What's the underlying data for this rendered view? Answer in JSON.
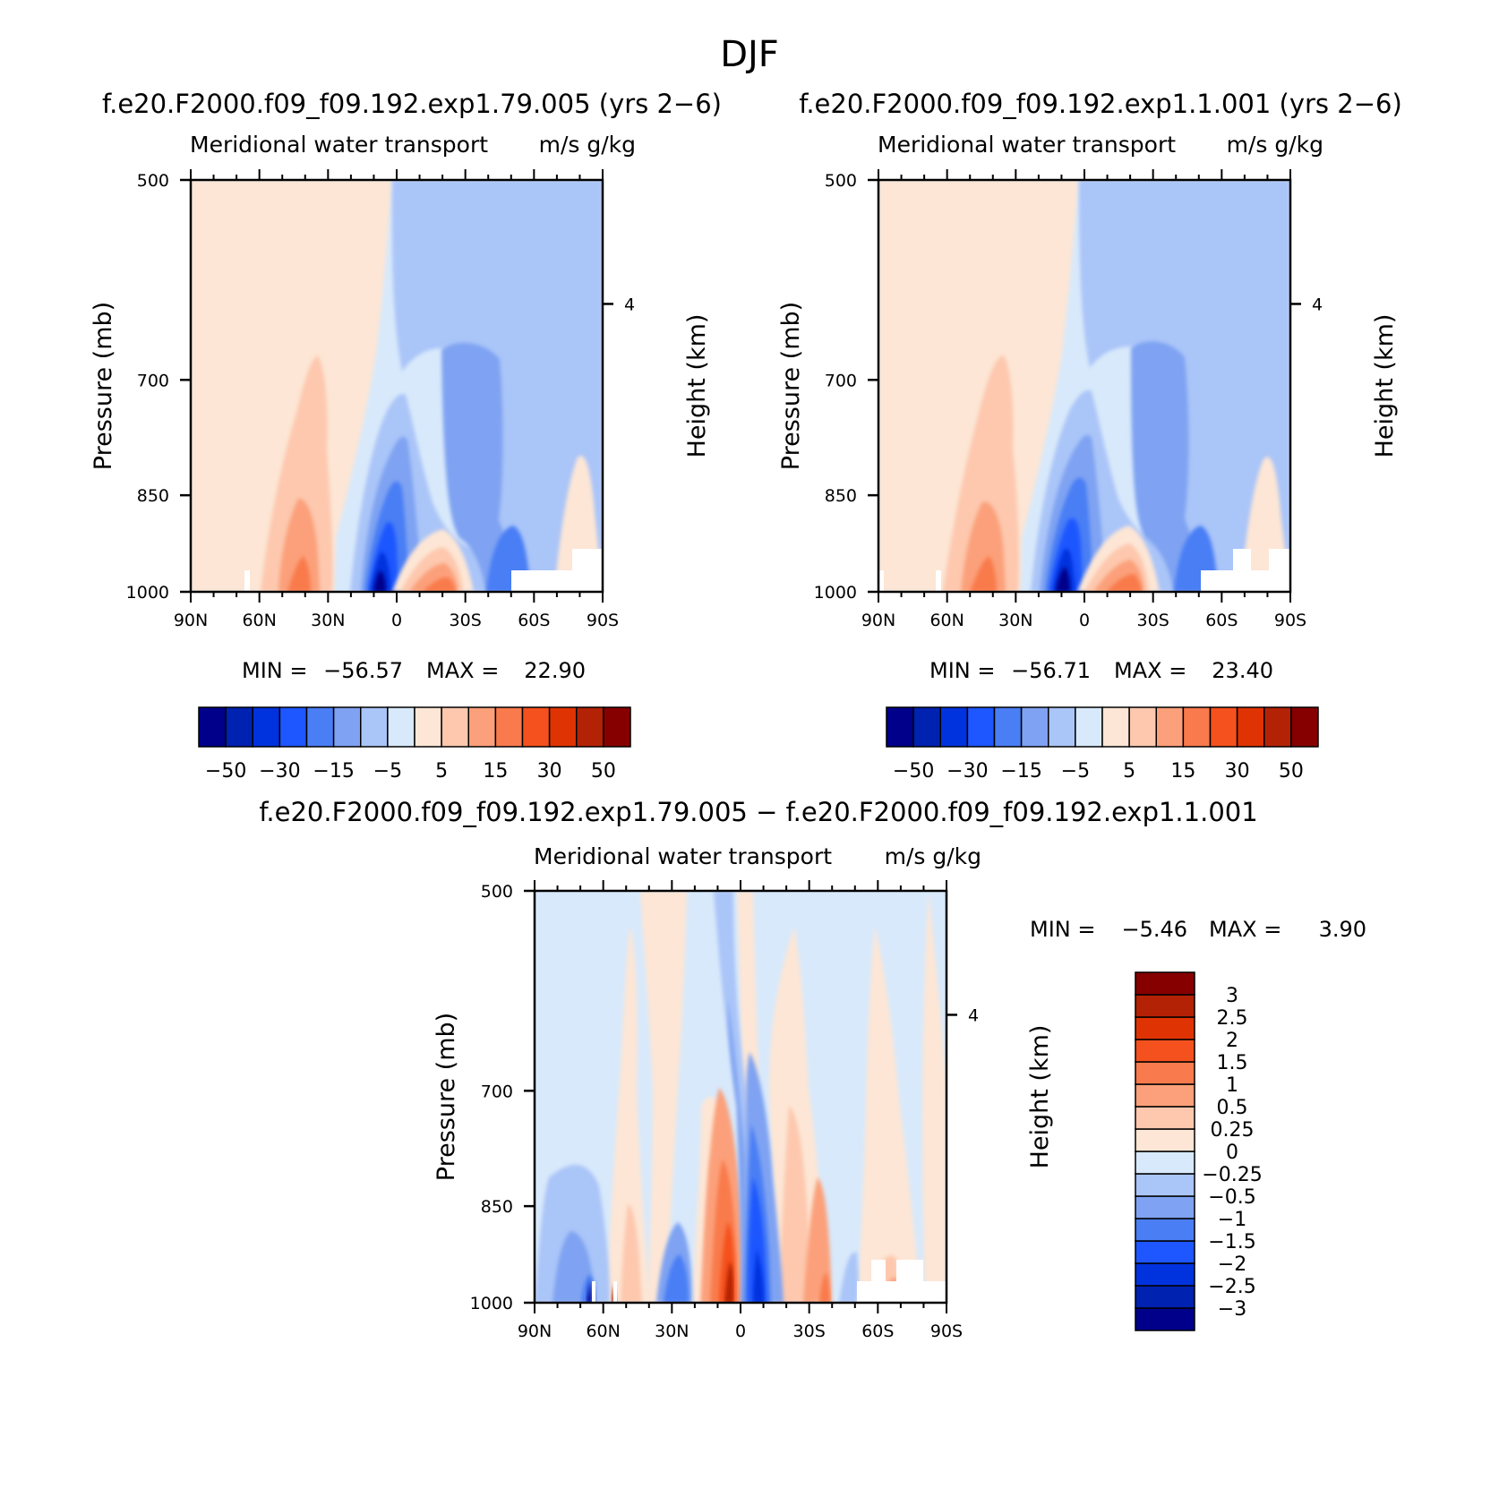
{
  "main_title": "DJF",
  "chart_data": [
    {
      "type": "contour",
      "panel": "top-left",
      "case_title": "f.e20.F2000.f09_f09.192.exp1.79.005 (yrs 2−6)",
      "left_subtitle": "Meridional water transport",
      "right_subtitle": "m/s g/kg",
      "ylabel": "Pressure (mb)",
      "y2label": "Height (km)",
      "y_ticks": [
        "500",
        "700",
        "850",
        "1000"
      ],
      "y_ticks_values": [
        500,
        700,
        850,
        1000
      ],
      "y2_ticks": [
        "4"
      ],
      "x_ticks": [
        "90N",
        "60N",
        "30N",
        "0",
        "30S",
        "60S",
        "90S"
      ],
      "x_ticks_values": [
        90,
        60,
        30,
        0,
        -30,
        -60,
        -90
      ],
      "ylim": [
        1000,
        500
      ],
      "xlim": [
        90,
        -90
      ],
      "min_label": "MIN =",
      "min_value": "−56.57",
      "max_label": "MAX =",
      "max_value": "22.90",
      "colorbar": {
        "orientation": "horizontal",
        "colors": [
          "#00008b",
          "#0022b0",
          "#0033dd",
          "#1e56ff",
          "#4a7ef5",
          "#7fa3f2",
          "#aac5f8",
          "#d8e9fb",
          "#fde6d5",
          "#fdc8ae",
          "#fba07a",
          "#f97a4c",
          "#f5511e",
          "#e03304",
          "#b32205",
          "#860000"
        ],
        "tick_labels": [
          "−50",
          "−30",
          "−15",
          "−5",
          "5",
          "15",
          "30",
          "50"
        ]
      }
    },
    {
      "type": "contour",
      "panel": "top-right",
      "case_title": "f.e20.F2000.f09_f09.192.exp1.1.001 (yrs 2−6)",
      "left_subtitle": "Meridional water transport",
      "right_subtitle": "m/s g/kg",
      "ylabel": "Pressure (mb)",
      "y2label": "Height (km)",
      "y_ticks": [
        "500",
        "700",
        "850",
        "1000"
      ],
      "y_ticks_values": [
        500,
        700,
        850,
        1000
      ],
      "y2_ticks": [
        "4"
      ],
      "x_ticks": [
        "90N",
        "60N",
        "30N",
        "0",
        "30S",
        "60S",
        "90S"
      ],
      "x_ticks_values": [
        90,
        60,
        30,
        0,
        -30,
        -60,
        -90
      ],
      "ylim": [
        1000,
        500
      ],
      "xlim": [
        90,
        -90
      ],
      "min_label": "MIN =",
      "min_value": "−56.71",
      "max_label": "MAX =",
      "max_value": "23.40",
      "colorbar": {
        "orientation": "horizontal",
        "colors": [
          "#00008b",
          "#0022b0",
          "#0033dd",
          "#1e56ff",
          "#4a7ef5",
          "#7fa3f2",
          "#aac5f8",
          "#d8e9fb",
          "#fde6d5",
          "#fdc8ae",
          "#fba07a",
          "#f97a4c",
          "#f5511e",
          "#e03304",
          "#b32205",
          "#860000"
        ],
        "tick_labels": [
          "−50",
          "−30",
          "−15",
          "−5",
          "5",
          "15",
          "30",
          "50"
        ]
      }
    },
    {
      "type": "contour",
      "panel": "bottom-difference",
      "case_title": "f.e20.F2000.f09_f09.192.exp1.79.005 − f.e20.F2000.f09_f09.192.exp1.1.001",
      "left_subtitle": "Meridional water transport",
      "right_subtitle": "m/s g/kg",
      "ylabel": "Pressure (mb)",
      "y2label": "Height (km)",
      "y_ticks": [
        "500",
        "700",
        "850",
        "1000"
      ],
      "y_ticks_values": [
        500,
        700,
        850,
        1000
      ],
      "y2_ticks": [
        "4"
      ],
      "x_ticks": [
        "90N",
        "60N",
        "30N",
        "0",
        "30S",
        "60S",
        "90S"
      ],
      "x_ticks_values": [
        90,
        60,
        30,
        0,
        -30,
        -60,
        -90
      ],
      "ylim": [
        1000,
        500
      ],
      "xlim": [
        90,
        -90
      ],
      "min_label": "MIN =",
      "min_value": "−5.46",
      "max_label": "MAX =",
      "max_value": "3.90",
      "colorbar": {
        "orientation": "vertical",
        "colors": [
          "#00008b",
          "#0022b0",
          "#0033dd",
          "#1e56ff",
          "#4a7ef5",
          "#7fa3f2",
          "#aac5f8",
          "#d8e9fb",
          "#fde6d5",
          "#fdc8ae",
          "#fba07a",
          "#f97a4c",
          "#f5511e",
          "#e03304",
          "#b32205",
          "#860000"
        ],
        "tick_labels": [
          "−3",
          "−2.5",
          "−2",
          "−1.5",
          "−1",
          "−0.5",
          "−0.25",
          "0",
          "0.25",
          "0.5",
          "1",
          "1.5",
          "2",
          "2.5",
          "3"
        ]
      }
    }
  ]
}
